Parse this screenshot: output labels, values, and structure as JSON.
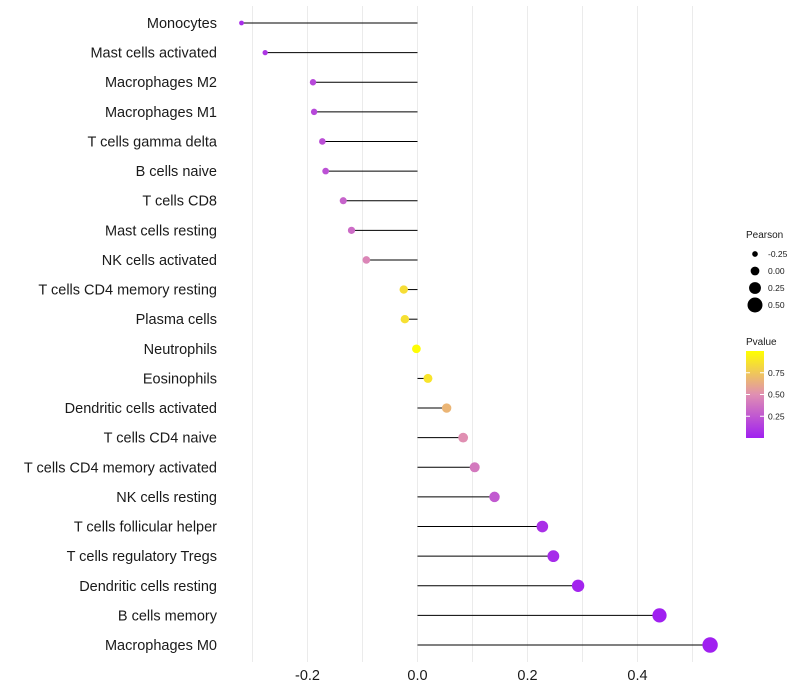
{
  "chart_data": {
    "type": "lollipop",
    "title": "",
    "xlabel": "",
    "ylabel": "",
    "xlim": [
      -0.35,
      0.55
    ],
    "x_ticks": [
      -0.2,
      0.0,
      0.2,
      0.4
    ],
    "x_tick_labels": [
      "-0.2",
      "0.0",
      "0.2",
      "0.4"
    ],
    "grid": "vertical",
    "categories": [
      {
        "name": "Monocytes",
        "pearson": -0.32,
        "pvalue": 0.06
      },
      {
        "name": "Mast cells activated",
        "pearson": -0.277,
        "pvalue": 0.1
      },
      {
        "name": "Macrophages M2",
        "pearson": -0.19,
        "pvalue": 0.18
      },
      {
        "name": "Macrophages M1",
        "pearson": -0.188,
        "pvalue": 0.18
      },
      {
        "name": "T cells gamma delta",
        "pearson": -0.173,
        "pvalue": 0.21
      },
      {
        "name": "B cells naive",
        "pearson": -0.167,
        "pvalue": 0.22
      },
      {
        "name": "T cells CD8",
        "pearson": -0.135,
        "pvalue": 0.3
      },
      {
        "name": "Mast cells resting",
        "pearson": -0.12,
        "pvalue": 0.34
      },
      {
        "name": "NK cells activated",
        "pearson": -0.093,
        "pvalue": 0.46
      },
      {
        "name": "T cells CD4 memory resting",
        "pearson": -0.025,
        "pvalue": 0.85
      },
      {
        "name": "Plasma cells",
        "pearson": -0.023,
        "pvalue": 0.86
      },
      {
        "name": "Neutrophils",
        "pearson": -0.002,
        "pvalue": 0.99
      },
      {
        "name": "Eosinophils",
        "pearson": 0.019,
        "pvalue": 0.88
      },
      {
        "name": "Dendritic cells activated",
        "pearson": 0.053,
        "pvalue": 0.67
      },
      {
        "name": "T cells CD4 naive",
        "pearson": 0.083,
        "pvalue": 0.5
      },
      {
        "name": "T cells CD4 memory activated",
        "pearson": 0.104,
        "pvalue": 0.4
      },
      {
        "name": "NK cells resting",
        "pearson": 0.14,
        "pvalue": 0.26
      },
      {
        "name": "T cells follicular helper",
        "pearson": 0.227,
        "pvalue": 0.07
      },
      {
        "name": "T cells regulatory  Tregs ",
        "pearson": 0.247,
        "pvalue": 0.05
      },
      {
        "name": "Dendritic cells resting",
        "pearson": 0.292,
        "pvalue": 0.02
      },
      {
        "name": "B cells memory",
        "pearson": 0.44,
        "pvalue": 0.002
      },
      {
        "name": "Macrophages M0",
        "pearson": 0.532,
        "pvalue": 0.0001
      }
    ],
    "legend_size": {
      "title": "Pearson",
      "values": [
        -0.25,
        0.0,
        0.25,
        0.5
      ],
      "labels": [
        "-0.25",
        "0.00",
        "0.25",
        "0.50"
      ]
    },
    "legend_color": {
      "title": "Pvalue",
      "range": [
        0.0,
        1.0
      ],
      "ticks": [
        0.25,
        0.5,
        0.75
      ],
      "tick_labels": [
        "0.25",
        "0.50",
        "0.75"
      ],
      "low_color": "#a020f0",
      "high_color": "#ffff00"
    },
    "stem_color": "#000000",
    "grid_color": "#ebebeb",
    "baseline_value": 0.0
  }
}
